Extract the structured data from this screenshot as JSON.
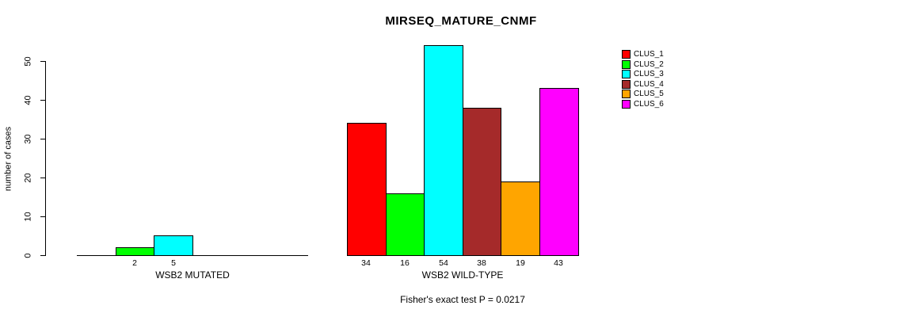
{
  "chart_data": {
    "type": "bar",
    "title": "MIRSEQ_MATURE_CNMF",
    "ylabel": "number of cases",
    "ylim": [
      0,
      50
    ],
    "yticks": [
      0,
      10,
      20,
      30,
      40,
      50
    ],
    "grid": false,
    "legend_position": "right",
    "series": [
      {
        "name": "CLUS_1",
        "color": "#FF0000"
      },
      {
        "name": "CLUS_2",
        "color": "#00FF00"
      },
      {
        "name": "CLUS_3",
        "color": "#00FFFF"
      },
      {
        "name": "CLUS_4",
        "color": "#A52A2A"
      },
      {
        "name": "CLUS_5",
        "color": "#FFA500"
      },
      {
        "name": "CLUS_6",
        "color": "#FF00FF"
      }
    ],
    "groups": [
      {
        "label": "WSB2 MUTATED",
        "values": [
          0,
          2,
          5,
          0,
          0,
          0
        ]
      },
      {
        "label": "WSB2 WILD-TYPE",
        "values": [
          34,
          16,
          54,
          38,
          19,
          43
        ]
      }
    ],
    "footnote": "Fisher's exact test P = 0.0217"
  }
}
